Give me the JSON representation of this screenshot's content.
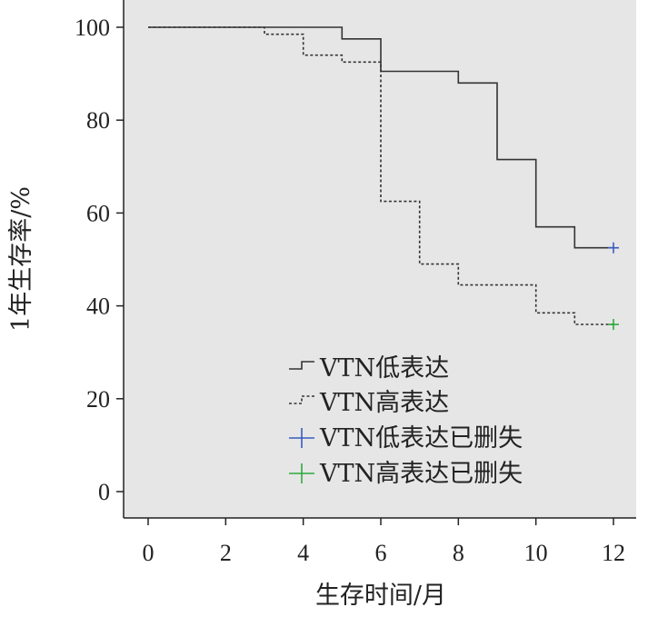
{
  "chart_data": {
    "type": "line",
    "title": "",
    "xlabel": "生存时间/月",
    "ylabel": "1年生存率/%",
    "xlim": [
      0,
      12
    ],
    "ylim": [
      0,
      100
    ],
    "x_ticks": [
      "0",
      "2",
      "4",
      "6",
      "8",
      "10",
      "12"
    ],
    "y_ticks": [
      "0",
      "20",
      "40",
      "60",
      "80",
      "100"
    ],
    "grid": false,
    "legend_position": "bottom-center",
    "series": [
      {
        "name": "VTN低表达",
        "style": "solid step",
        "color": "#333333",
        "points": [
          [
            0,
            100
          ],
          [
            5,
            100
          ],
          [
            5,
            97.5
          ],
          [
            6,
            97.5
          ],
          [
            6,
            90.5
          ],
          [
            8,
            90.5
          ],
          [
            8,
            88
          ],
          [
            9,
            88
          ],
          [
            9,
            71.5
          ],
          [
            10,
            71.5
          ],
          [
            10,
            57
          ],
          [
            11,
            57
          ],
          [
            11,
            52.5
          ],
          [
            12,
            52.5
          ]
        ]
      },
      {
        "name": "VTN高表达",
        "style": "dashed step",
        "color": "#333333",
        "points": [
          [
            0,
            100
          ],
          [
            3,
            100
          ],
          [
            3,
            98.5
          ],
          [
            4,
            98.5
          ],
          [
            4,
            94
          ],
          [
            5,
            94
          ],
          [
            5,
            92.5
          ],
          [
            6,
            92.5
          ],
          [
            6,
            62.5
          ],
          [
            7,
            62.5
          ],
          [
            7,
            49
          ],
          [
            8,
            49
          ],
          [
            8,
            44.5
          ],
          [
            10,
            44.5
          ],
          [
            10,
            38.5
          ],
          [
            11,
            38.5
          ],
          [
            11,
            36
          ],
          [
            12,
            36
          ]
        ]
      }
    ],
    "censored": [
      {
        "name": "VTN低表达已删失",
        "color": "#3a5bbf",
        "x": 12,
        "y": 52.5
      },
      {
        "name": "VTN高表达已删失",
        "color": "#2eaa3c",
        "x": 12,
        "y": 36
      }
    ],
    "plot_background": "#e6e6e6"
  }
}
